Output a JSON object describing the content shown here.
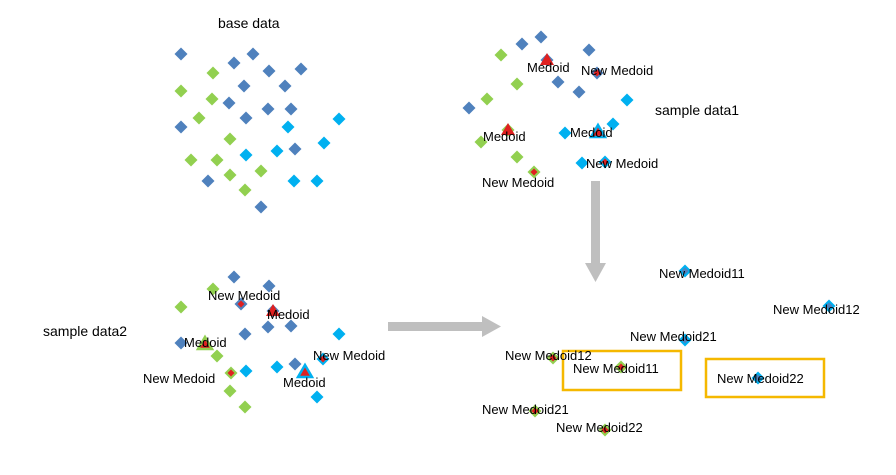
{
  "colors": {
    "dark_blue": "#4F81BD",
    "green": "#92D050",
    "cyan": "#00B0F0",
    "red": "#E02020",
    "arrow": "#BFBFBF",
    "highlight": "#F5B800"
  },
  "titles": {
    "base": "base data",
    "sample1": "sample data1",
    "sample2": "sample data2"
  },
  "labels": {
    "medoid": "Medoid",
    "new_medoid": "New Medoid",
    "new_medoid11": "New Medoid11",
    "new_medoid12": "New Medoid12",
    "new_medoid21": "New Medoid21",
    "new_medoid22": "New Medoid22"
  }
}
